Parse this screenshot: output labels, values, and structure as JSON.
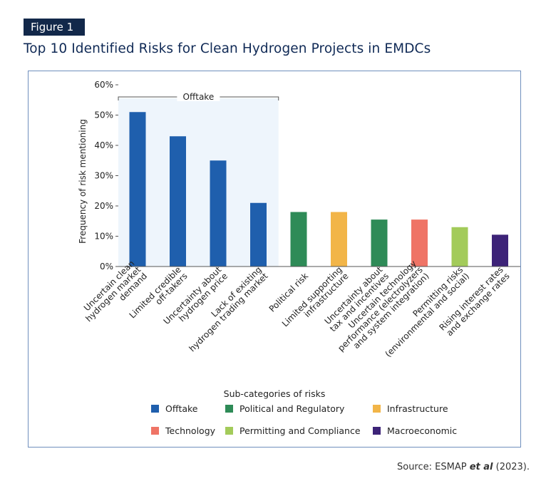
{
  "figure": {
    "badge": "Figure 1",
    "title": "Top 10 Identified Risks for Clean Hydrogen Projects in EMDCs",
    "source_prefix": "Source: ESMAP ",
    "source_italic": "et al",
    "source_suffix": " (2023)."
  },
  "colors": {
    "Offtake": "#1f5fad",
    "Political and Regulatory": "#2e8b57",
    "Infrastructure": "#f2b548",
    "Technology": "#ef7466",
    "Permitting and Compliance": "#a3cb5a",
    "Macroeconomic": "#3d2378",
    "offtake_bg": "#eef5fc"
  },
  "chart_data": {
    "type": "bar",
    "ylabel": "Frequency of risk mentioning",
    "ylim": [
      0,
      60
    ],
    "yticks": [
      "0%",
      "10%",
      "20%",
      "30%",
      "40%",
      "50%",
      "60%"
    ],
    "grid": false,
    "categories": [
      "Uncertain clean\nhydrogen market\ndemand",
      "Limited credible\noff-takers",
      "Uncertainty about\nhydrogen price",
      "Lack of existing\nhydrogen trading market",
      "Political risk",
      "Limited supporting\ninfrastructure",
      "Uncertainty about\ntax and incentives",
      "Uncertain technology\nperformance (electrolyzers\nand system integration)",
      "Permitting risks\n(environmental and social)",
      "Rising interest rates\nand exchange rates"
    ],
    "values": [
      51,
      43,
      35,
      21,
      18,
      18,
      15.5,
      15.5,
      13,
      10.5
    ],
    "groups": [
      "Offtake",
      "Offtake",
      "Offtake",
      "Offtake",
      "Political and Regulatory",
      "Infrastructure",
      "Political and Regulatory",
      "Technology",
      "Permitting and Compliance",
      "Macroeconomic"
    ],
    "bracket_label": "Offtake",
    "legend_title": "Sub-categories of risks",
    "legend": [
      "Offtake",
      "Political and Regulatory",
      "Infrastructure",
      "Technology",
      "Permitting and Compliance",
      "Macroeconomic"
    ]
  }
}
